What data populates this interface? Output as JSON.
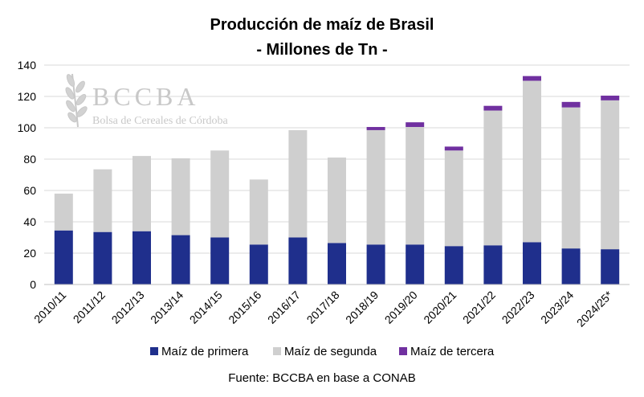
{
  "chart_data": {
    "type": "bar",
    "stacked": true,
    "title_line1": "Producción de maíz de Brasil",
    "title_line2": "- Millones de Tn -",
    "categories": [
      "2010/11",
      "2011/12",
      "2012/13",
      "2013/14",
      "2014/15",
      "2015/16",
      "2016/17",
      "2017/18",
      "2018/19",
      "2019/20",
      "2020/21",
      "2021/22",
      "2022/23",
      "2023/24",
      "2024/25*"
    ],
    "series": [
      {
        "name": "Maíz de primera",
        "color": "#1f2f8c",
        "values": [
          34.5,
          33.5,
          34,
          31.5,
          30,
          25.5,
          30,
          26.5,
          25.5,
          25.5,
          24.5,
          25,
          27,
          23,
          22.5
        ]
      },
      {
        "name": "Maíz de segunda",
        "color": "#cfcfcf",
        "values": [
          23.5,
          40,
          48,
          49,
          55.5,
          41.5,
          68.5,
          54.5,
          73,
          75,
          61,
          86,
          103,
          90,
          95
        ]
      },
      {
        "name": "Maíz de tercera",
        "color": "#7030a0",
        "values": [
          0,
          0,
          0,
          0,
          0,
          0,
          0,
          0,
          2,
          3,
          2.5,
          3,
          3,
          3.5,
          3
        ]
      }
    ],
    "ylim": [
      0,
      140
    ],
    "yticks": [
      0,
      20,
      40,
      60,
      80,
      100,
      120,
      140
    ],
    "grid": true,
    "legend_position": "bottom",
    "source": "Fuente: BCCBA en base a CONAB",
    "watermark": {
      "logo_text": "BCCBA",
      "subtitle": "Bolsa de Cereales de Córdoba"
    }
  }
}
